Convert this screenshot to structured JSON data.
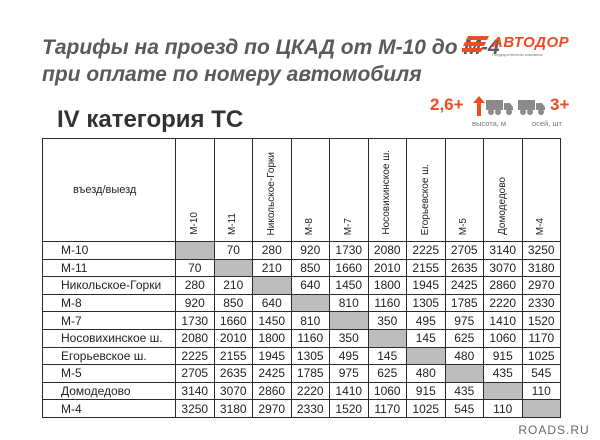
{
  "title": {
    "line1": "Тарифы на проезд по ЦКАД от М-10 до М-4",
    "line2": "при оплате по номеру автомобиля"
  },
  "logo": {
    "text": "АВТОДОР",
    "subtitle": "Государственная компания"
  },
  "category_heading": "IV категория ТС",
  "legend": {
    "height_value": "2,6+",
    "height_caption": "высота, м",
    "axles_value": "3+",
    "axles_caption": "осей, шт"
  },
  "table": {
    "corner_label": "въезд/выезд",
    "columns": [
      "М-10",
      "М-11",
      "Никольское-Горки",
      "М-8",
      "М-7",
      "Носовихинское ш.",
      "Егорьевское ш.",
      "М-5",
      "Домодедово",
      "М-4"
    ],
    "rows": [
      {
        "name": "М-10",
        "values": [
          "",
          "70",
          "280",
          "920",
          "1730",
          "2080",
          "2225",
          "2705",
          "3140",
          "3250"
        ]
      },
      {
        "name": "М-11",
        "values": [
          "70",
          "",
          "210",
          "850",
          "1660",
          "2010",
          "2155",
          "2635",
          "3070",
          "3180"
        ]
      },
      {
        "name": "Никольское-Горки",
        "values": [
          "280",
          "210",
          "",
          "640",
          "1450",
          "1800",
          "1945",
          "2425",
          "2860",
          "2970"
        ]
      },
      {
        "name": "М-8",
        "values": [
          "920",
          "850",
          "640",
          "",
          "810",
          "1160",
          "1305",
          "1785",
          "2220",
          "2330"
        ]
      },
      {
        "name": "М-7",
        "values": [
          "1730",
          "1660",
          "1450",
          "810",
          "",
          "350",
          "495",
          "975",
          "1410",
          "1520"
        ]
      },
      {
        "name": "Носовихинское ш.",
        "values": [
          "2080",
          "2010",
          "1800",
          "1160",
          "350",
          "",
          "145",
          "625",
          "1060",
          "1170"
        ]
      },
      {
        "name": "Егорьевское ш.",
        "values": [
          "2225",
          "2155",
          "1945",
          "1305",
          "495",
          "145",
          "",
          "480",
          "915",
          "1025"
        ]
      },
      {
        "name": "М-5",
        "values": [
          "2705",
          "2635",
          "2425",
          "1785",
          "975",
          "625",
          "480",
          "",
          "435",
          "545"
        ]
      },
      {
        "name": "Домодедово",
        "values": [
          "3140",
          "3070",
          "2860",
          "2220",
          "1410",
          "1060",
          "915",
          "435",
          "",
          "110"
        ]
      },
      {
        "name": "М-4",
        "values": [
          "3250",
          "3180",
          "2970",
          "2330",
          "1520",
          "1170",
          "1025",
          "545",
          "110",
          ""
        ]
      }
    ]
  },
  "footer": "ROADS.RU",
  "colors": {
    "accent": "#ef4c23",
    "title": "#5a5a5a",
    "diagonal": "#bdbdbd",
    "watermark_bg": "#ffffff"
  }
}
